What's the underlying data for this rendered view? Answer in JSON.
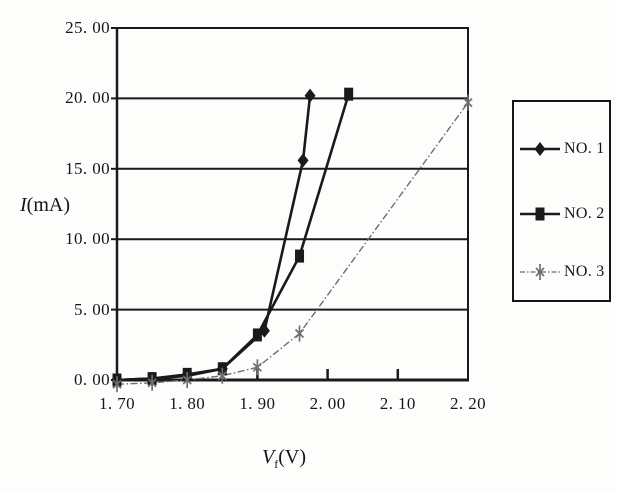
{
  "figure": {
    "background": "#fdfdfc",
    "ink_color": "#1a1a1a",
    "muted_color": "#6e6e6e"
  },
  "chart_data": {
    "type": "line",
    "title": "",
    "xlabel": {
      "variable": "V",
      "subscript": "f",
      "unit": "(V)"
    },
    "ylabel": {
      "variable": "I",
      "unit": "(mA)"
    },
    "xlim": [
      1.7,
      2.2
    ],
    "ylim": [
      0,
      25
    ],
    "x_tick_values": [
      1.7,
      1.8,
      1.9,
      2.0,
      2.1,
      2.2
    ],
    "x_tick_labels": [
      "1. 70",
      "1. 80",
      "1. 90",
      "2. 00",
      "2. 10",
      "2. 20"
    ],
    "x_inner_tick_values": [
      1.8,
      1.9,
      2.0,
      2.1
    ],
    "y_tick_values": [
      0,
      5,
      10,
      15,
      20,
      25
    ],
    "y_tick_labels": [
      "0. 00",
      "5. 00",
      "10. 00",
      "15. 00",
      "20. 00",
      "25. 00"
    ],
    "grid": "horizontal-only",
    "legend_position": "right-outside",
    "series": [
      {
        "name": "NO. 1",
        "marker": "diamond",
        "line_style": "solid",
        "color": "#1a1a1a",
        "points": [
          [
            1.7,
            0.0
          ],
          [
            1.75,
            0.1
          ],
          [
            1.8,
            0.3
          ],
          [
            1.85,
            0.8
          ],
          [
            1.91,
            3.5
          ],
          [
            1.965,
            15.6
          ],
          [
            1.975,
            20.2
          ]
        ]
      },
      {
        "name": "NO. 2",
        "marker": "square",
        "line_style": "solid",
        "color": "#1a1a1a",
        "points": [
          [
            1.7,
            0.0
          ],
          [
            1.75,
            0.1
          ],
          [
            1.8,
            0.4
          ],
          [
            1.85,
            0.8
          ],
          [
            1.9,
            3.2
          ],
          [
            1.96,
            8.8
          ],
          [
            2.03,
            20.3
          ]
        ]
      },
      {
        "name": "NO. 3",
        "marker": "star",
        "line_style": "dash-dot",
        "color": "#6e6e6e",
        "points": [
          [
            1.7,
            -0.3
          ],
          [
            1.75,
            -0.2
          ],
          [
            1.8,
            0.0
          ],
          [
            1.85,
            0.3
          ],
          [
            1.9,
            0.9
          ],
          [
            1.96,
            3.3
          ],
          [
            2.2,
            19.7
          ]
        ]
      }
    ]
  }
}
